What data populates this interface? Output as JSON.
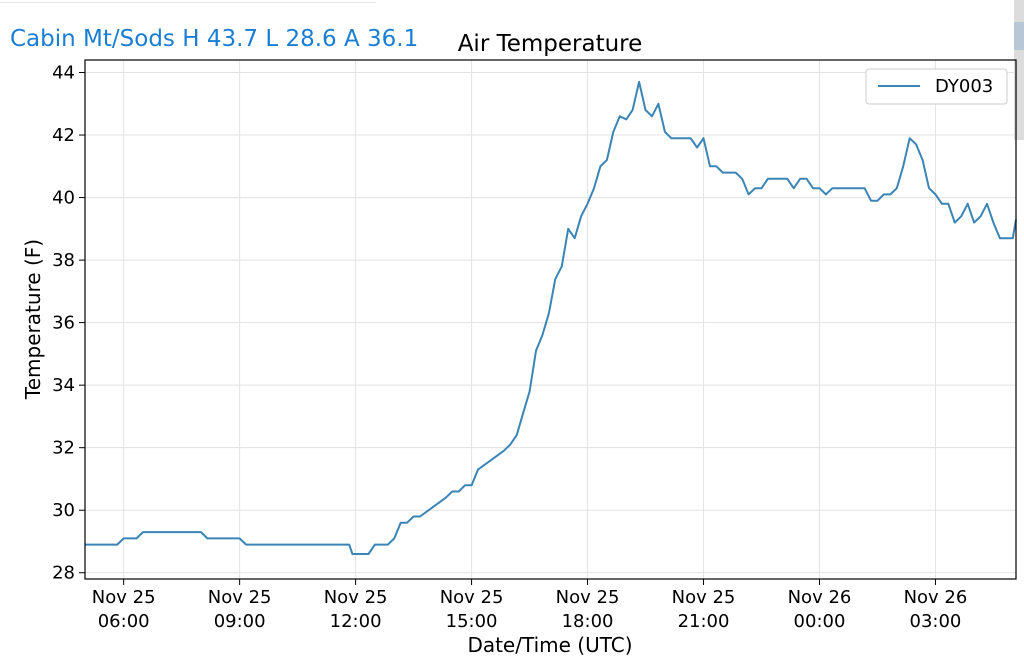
{
  "header": {
    "station_summary": "Cabin Mt/Sods H 43.7 L 28.6 A 36.1"
  },
  "chart_data": {
    "type": "line",
    "title": "Air Temperature",
    "xlabel": "Date/Time (UTC)",
    "ylabel": "Temperature (F)",
    "ylim": [
      27.8,
      44.4
    ],
    "xlim": [
      "2023-11-25T05:00",
      "2023-11-26T05:05"
    ],
    "yticks": [
      28,
      30,
      32,
      34,
      36,
      38,
      40,
      42,
      44
    ],
    "xticks": [
      {
        "x": "2023-11-25T06:00",
        "line1": "Nov 25",
        "line2": "06:00"
      },
      {
        "x": "2023-11-25T09:00",
        "line1": "Nov 25",
        "line2": "09:00"
      },
      {
        "x": "2023-11-25T12:00",
        "line1": "Nov 25",
        "line2": "12:00"
      },
      {
        "x": "2023-11-25T15:00",
        "line1": "Nov 25",
        "line2": "15:00"
      },
      {
        "x": "2023-11-25T18:00",
        "line1": "Nov 25",
        "line2": "18:00"
      },
      {
        "x": "2023-11-25T21:00",
        "line1": "Nov 25",
        "line2": "21:00"
      },
      {
        "x": "2023-11-26T00:00",
        "line1": "Nov 26",
        "line2": "00:00"
      },
      {
        "x": "2023-11-26T03:00",
        "line1": "Nov 26",
        "line2": "03:00"
      }
    ],
    "grid": true,
    "legend_position": "top-right",
    "series": [
      {
        "name": "DY003",
        "color": "#3a85b5",
        "points": [
          [
            "2023-11-25T05:00",
            28.9
          ],
          [
            "2023-11-25T05:30",
            28.9
          ],
          [
            "2023-11-25T05:50",
            28.9
          ],
          [
            "2023-11-25T06:00",
            29.1
          ],
          [
            "2023-11-25T06:20",
            29.1
          ],
          [
            "2023-11-25T06:30",
            29.3
          ],
          [
            "2023-11-25T07:00",
            29.3
          ],
          [
            "2023-11-25T07:30",
            29.3
          ],
          [
            "2023-11-25T08:00",
            29.3
          ],
          [
            "2023-11-25T08:10",
            29.1
          ],
          [
            "2023-11-25T08:40",
            29.1
          ],
          [
            "2023-11-25T09:00",
            29.1
          ],
          [
            "2023-11-25T09:10",
            28.9
          ],
          [
            "2023-11-25T10:00",
            28.9
          ],
          [
            "2023-11-25T11:00",
            28.9
          ],
          [
            "2023-11-25T11:50",
            28.9
          ],
          [
            "2023-11-25T11:55",
            28.6
          ],
          [
            "2023-11-25T12:20",
            28.6
          ],
          [
            "2023-11-25T12:30",
            28.9
          ],
          [
            "2023-11-25T12:50",
            28.9
          ],
          [
            "2023-11-25T13:00",
            29.1
          ],
          [
            "2023-11-25T13:10",
            29.6
          ],
          [
            "2023-11-25T13:20",
            29.6
          ],
          [
            "2023-11-25T13:30",
            29.8
          ],
          [
            "2023-11-25T13:40",
            29.8
          ],
          [
            "2023-11-25T14:00",
            30.1
          ],
          [
            "2023-11-25T14:20",
            30.4
          ],
          [
            "2023-11-25T14:30",
            30.6
          ],
          [
            "2023-11-25T14:40",
            30.6
          ],
          [
            "2023-11-25T14:50",
            30.8
          ],
          [
            "2023-11-25T15:00",
            30.8
          ],
          [
            "2023-11-25T15:10",
            31.3
          ],
          [
            "2023-11-25T15:30",
            31.6
          ],
          [
            "2023-11-25T15:50",
            31.9
          ],
          [
            "2023-11-25T16:00",
            32.1
          ],
          [
            "2023-11-25T16:10",
            32.4
          ],
          [
            "2023-11-25T16:20",
            33.1
          ],
          [
            "2023-11-25T16:30",
            33.8
          ],
          [
            "2023-11-25T16:40",
            35.1
          ],
          [
            "2023-11-25T16:50",
            35.6
          ],
          [
            "2023-11-25T17:00",
            36.3
          ],
          [
            "2023-11-25T17:10",
            37.4
          ],
          [
            "2023-11-25T17:20",
            37.8
          ],
          [
            "2023-11-25T17:30",
            39.0
          ],
          [
            "2023-11-25T17:40",
            38.7
          ],
          [
            "2023-11-25T17:50",
            39.4
          ],
          [
            "2023-11-25T18:00",
            39.8
          ],
          [
            "2023-11-25T18:10",
            40.3
          ],
          [
            "2023-11-25T18:20",
            41.0
          ],
          [
            "2023-11-25T18:30",
            41.2
          ],
          [
            "2023-11-25T18:40",
            42.1
          ],
          [
            "2023-11-25T18:50",
            42.6
          ],
          [
            "2023-11-25T19:00",
            42.5
          ],
          [
            "2023-11-25T19:10",
            42.8
          ],
          [
            "2023-11-25T19:20",
            43.7
          ],
          [
            "2023-11-25T19:30",
            42.8
          ],
          [
            "2023-11-25T19:40",
            42.6
          ],
          [
            "2023-11-25T19:50",
            43.0
          ],
          [
            "2023-11-25T20:00",
            42.1
          ],
          [
            "2023-11-25T20:10",
            41.9
          ],
          [
            "2023-11-25T20:30",
            41.9
          ],
          [
            "2023-11-25T20:40",
            41.9
          ],
          [
            "2023-11-25T20:50",
            41.6
          ],
          [
            "2023-11-25T21:00",
            41.9
          ],
          [
            "2023-11-25T21:10",
            41.0
          ],
          [
            "2023-11-25T21:20",
            41.0
          ],
          [
            "2023-11-25T21:30",
            40.8
          ],
          [
            "2023-11-25T21:50",
            40.8
          ],
          [
            "2023-11-25T22:00",
            40.6
          ],
          [
            "2023-11-25T22:10",
            40.1
          ],
          [
            "2023-11-25T22:20",
            40.3
          ],
          [
            "2023-11-25T22:30",
            40.3
          ],
          [
            "2023-11-25T22:40",
            40.6
          ],
          [
            "2023-11-25T23:10",
            40.6
          ],
          [
            "2023-11-25T23:20",
            40.3
          ],
          [
            "2023-11-25T23:30",
            40.6
          ],
          [
            "2023-11-25T23:40",
            40.6
          ],
          [
            "2023-11-25T23:50",
            40.3
          ],
          [
            "2023-11-26T00:00",
            40.3
          ],
          [
            "2023-11-26T00:10",
            40.1
          ],
          [
            "2023-11-26T00:20",
            40.3
          ],
          [
            "2023-11-26T01:00",
            40.3
          ],
          [
            "2023-11-26T01:10",
            40.3
          ],
          [
            "2023-11-26T01:20",
            39.9
          ],
          [
            "2023-11-26T01:30",
            39.9
          ],
          [
            "2023-11-26T01:40",
            40.1
          ],
          [
            "2023-11-26T01:50",
            40.1
          ],
          [
            "2023-11-26T02:00",
            40.3
          ],
          [
            "2023-11-26T02:10",
            41.0
          ],
          [
            "2023-11-26T02:20",
            41.9
          ],
          [
            "2023-11-26T02:30",
            41.7
          ],
          [
            "2023-11-26T02:40",
            41.2
          ],
          [
            "2023-11-26T02:50",
            40.3
          ],
          [
            "2023-11-26T03:00",
            40.1
          ],
          [
            "2023-11-26T03:10",
            39.8
          ],
          [
            "2023-11-26T03:20",
            39.8
          ],
          [
            "2023-11-26T03:30",
            39.2
          ],
          [
            "2023-11-26T03:40",
            39.4
          ],
          [
            "2023-11-26T03:50",
            39.8
          ],
          [
            "2023-11-26T04:00",
            39.2
          ],
          [
            "2023-11-26T04:10",
            39.4
          ],
          [
            "2023-11-26T04:20",
            39.8
          ],
          [
            "2023-11-26T04:30",
            39.2
          ],
          [
            "2023-11-26T04:40",
            38.7
          ],
          [
            "2023-11-26T04:50",
            38.7
          ],
          [
            "2023-11-26T05:00",
            38.7
          ],
          [
            "2023-11-26T05:05",
            39.3
          ]
        ]
      }
    ]
  }
}
